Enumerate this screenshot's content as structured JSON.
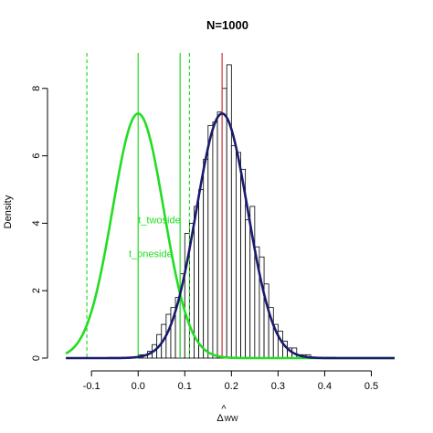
{
  "chart_data": {
    "type": "histogram",
    "title": "N=1000",
    "xlabel_main": "Δ",
    "xlabel_hat": "^",
    "xlabel_sub": "WW",
    "ylabel": "Density",
    "xlim": [
      -0.165,
      0.55
    ],
    "ylim": [
      0,
      9.05
    ],
    "x_ticks": [
      -0.1,
      0.0,
      0.1,
      0.2,
      0.3,
      0.4,
      0.5
    ],
    "x_tick_labels": [
      "-0.1",
      "0.0",
      "0.1",
      "0.2",
      "0.3",
      "0.4",
      "0.5"
    ],
    "y_ticks": [
      0,
      2,
      4,
      6,
      8
    ],
    "y_tick_labels": [
      "0",
      "2",
      "4",
      "6",
      "8"
    ],
    "histogram": {
      "bin_width": 0.01,
      "bins_start": [
        0.0,
        0.01,
        0.02,
        0.03,
        0.04,
        0.05,
        0.06,
        0.07,
        0.08,
        0.09,
        0.1,
        0.11,
        0.12,
        0.13,
        0.14,
        0.15,
        0.16,
        0.17,
        0.18,
        0.19,
        0.2,
        0.21,
        0.22,
        0.23,
        0.24,
        0.25,
        0.26,
        0.27,
        0.28,
        0.29,
        0.3,
        0.31,
        0.32,
        0.33,
        0.34,
        0.35,
        0.36
      ],
      "densities": [
        0.1,
        0.1,
        0.2,
        0.4,
        0.7,
        1.0,
        1.3,
        1.5,
        1.8,
        2.5,
        3.7,
        4.0,
        4.5,
        5.0,
        5.9,
        6.9,
        7.0,
        7.3,
        8.0,
        8.7,
        6.3,
        6.1,
        5.6,
        4.1,
        4.5,
        3.3,
        3.0,
        2.2,
        1.5,
        1.0,
        0.8,
        0.5,
        0.3,
        0.3,
        0.1,
        0.1,
        0.1
      ]
    },
    "series": [
      {
        "mean": 0.0,
        "sd": 0.055,
        "color": "#22dd22"
      },
      {
        "mean": 0.18,
        "sd": 0.055,
        "color": "#1a1a6e"
      }
    ],
    "vlines": [
      {
        "x": 0.0,
        "color": "#22dd22",
        "style": "solid"
      },
      {
        "x": 0.09,
        "color": "#22dd22",
        "style": "solid"
      },
      {
        "x": -0.11,
        "color": "#22dd22",
        "style": "dashed"
      },
      {
        "x": 0.11,
        "color": "#22dd22",
        "style": "dashed"
      },
      {
        "x": 0.18,
        "color": "#cc3333",
        "style": "solid"
      }
    ],
    "annotations": [
      {
        "text": "t_twoside",
        "x": 0.0,
        "y": 4.0,
        "color": "#22dd22"
      },
      {
        "text": "t_oneside",
        "x": -0.02,
        "y": 3.0,
        "color": "#22dd22"
      }
    ]
  }
}
